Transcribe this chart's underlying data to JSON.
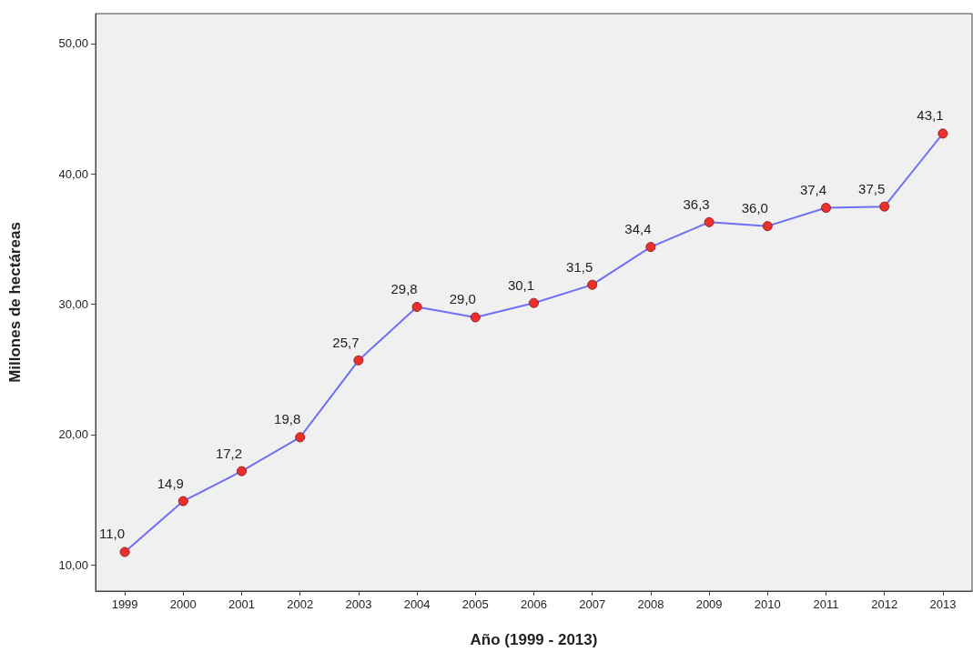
{
  "chart_data": {
    "type": "line",
    "xlabel": "Año (1999 - 2013)",
    "ylabel": "Millones de hectáreas",
    "categories": [
      "1999",
      "2000",
      "2001",
      "2002",
      "2003",
      "2004",
      "2005",
      "2006",
      "2007",
      "2008",
      "2009",
      "2010",
      "2011",
      "2012",
      "2013"
    ],
    "series": [
      {
        "color": "#6f6ff5",
        "values": [
          11.0,
          14.9,
          17.2,
          19.8,
          25.7,
          29.8,
          29.0,
          30.1,
          31.5,
          34.4,
          36.3,
          36.0,
          37.4,
          37.5,
          43.1
        ],
        "value_labels": [
          "11,0",
          "14,9",
          "17,2",
          "19,8",
          "25,7",
          "29,8",
          "29,0",
          "30,1",
          "31,5",
          "34,4",
          "36,3",
          "36,0",
          "37,4",
          "37,5",
          "43,1"
        ]
      }
    ],
    "marker": "circle",
    "line_style": "solid",
    "grid": false,
    "ylim": [
      8,
      52.3
    ],
    "yticks": [
      {
        "value": 10,
        "label": "10,00"
      },
      {
        "value": 20,
        "label": "20,00"
      },
      {
        "value": 30,
        "label": "30,00"
      },
      {
        "value": 40,
        "label": "40,00"
      },
      {
        "value": 50,
        "label": "50,00"
      }
    ]
  }
}
